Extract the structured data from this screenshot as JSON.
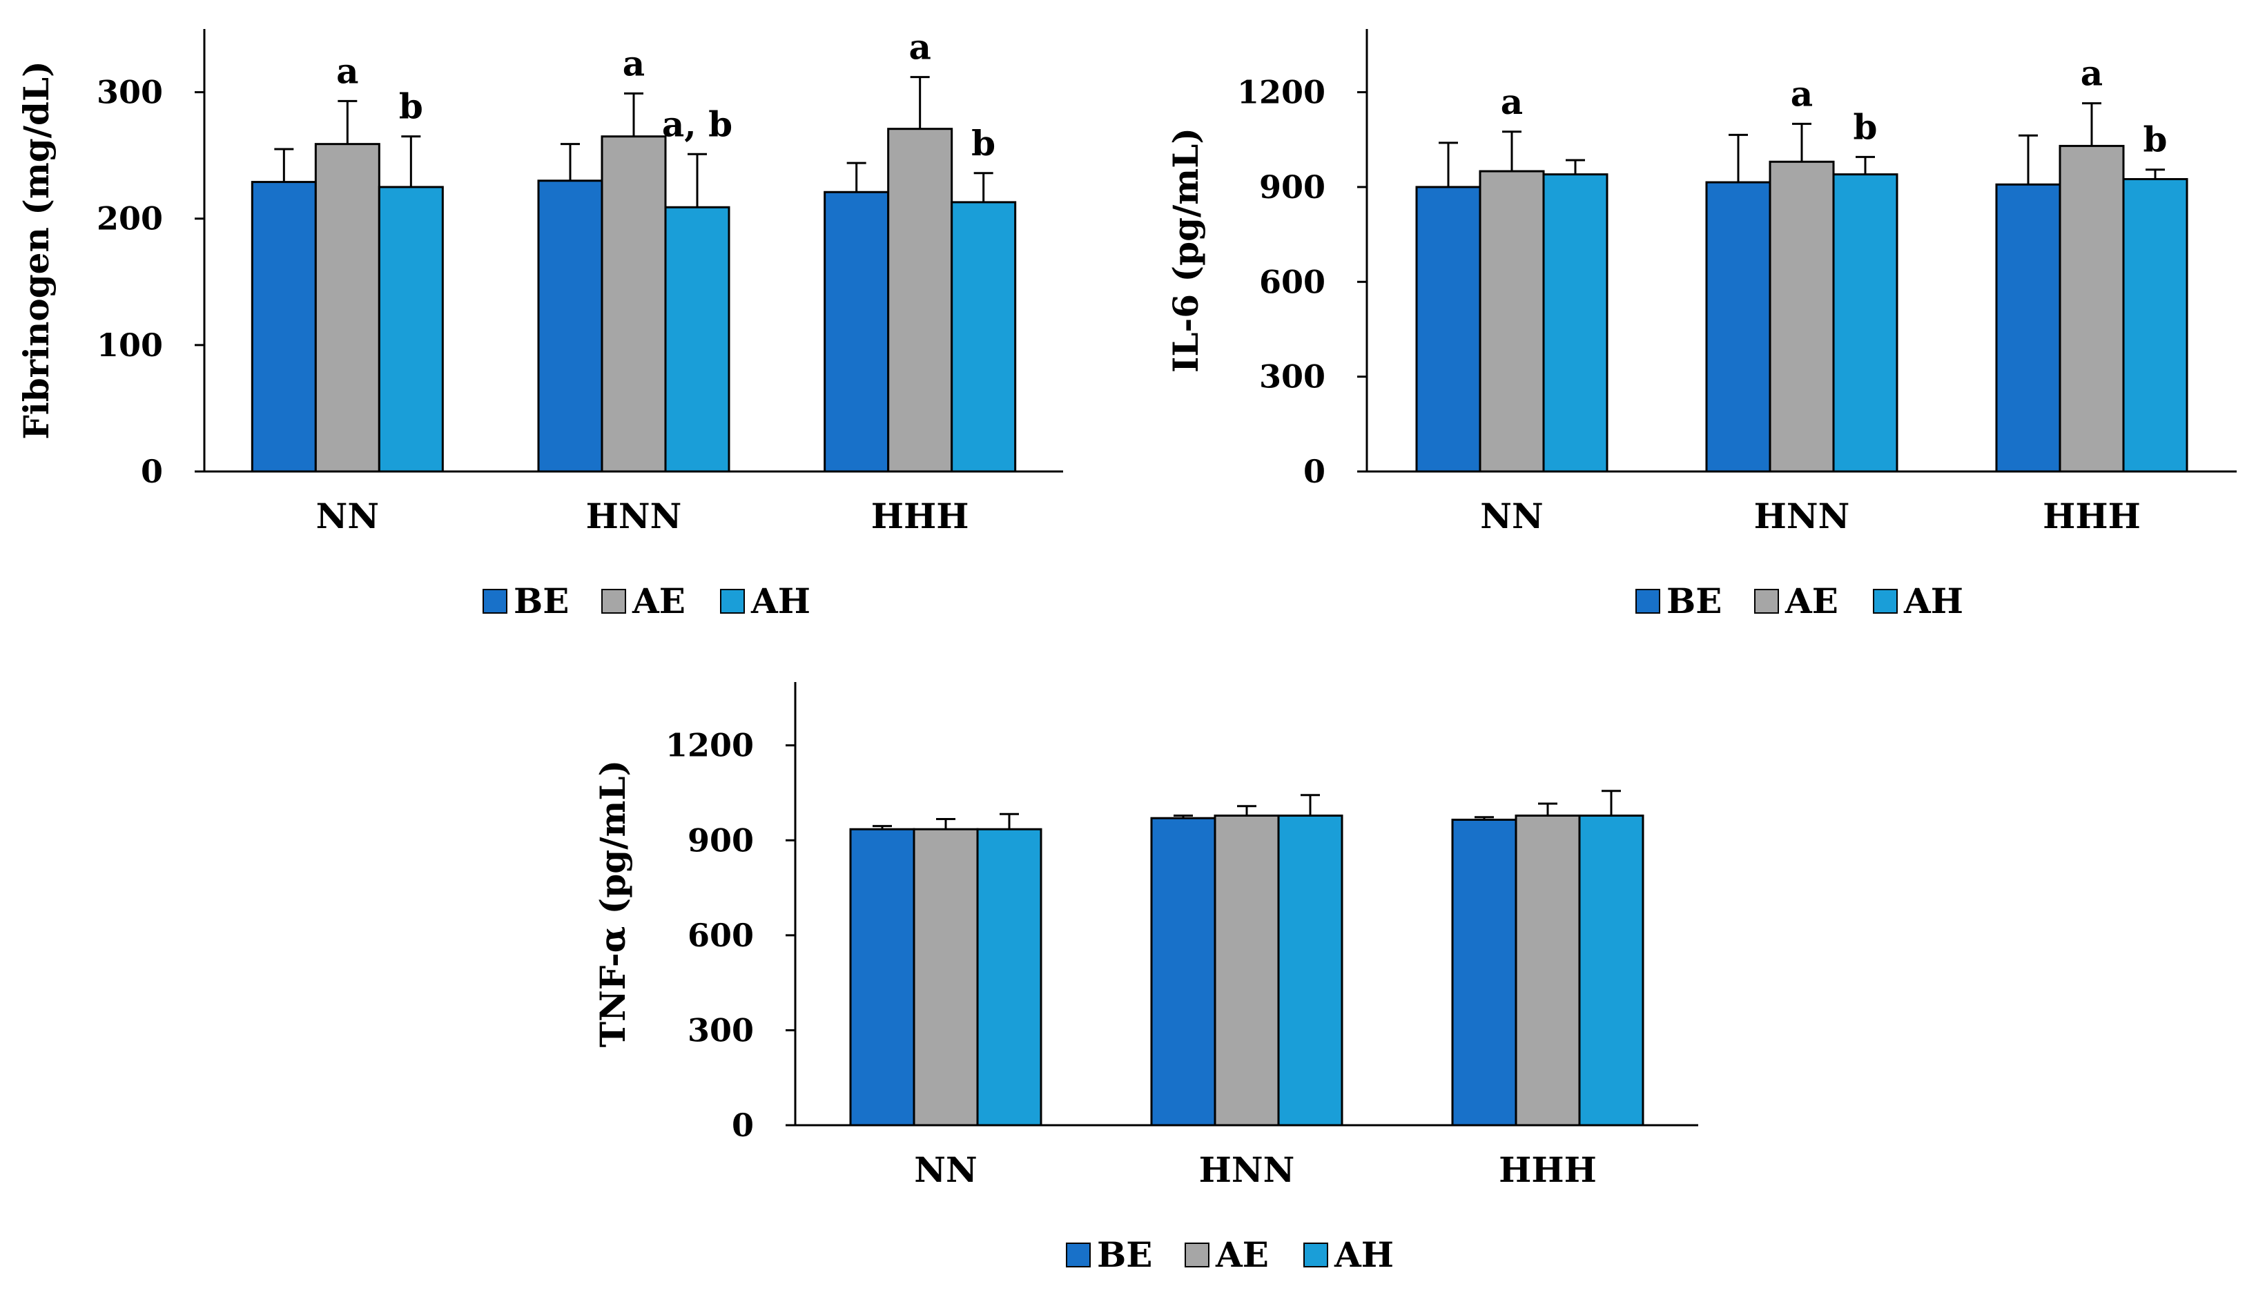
{
  "figure": {
    "colors": {
      "BE": "#1871C9",
      "AE": "#A6A6A6",
      "AH": "#1A9ED8",
      "outline": "#000000",
      "axis": "#000000"
    }
  },
  "chart_data": [
    {
      "type": "bar",
      "title": "",
      "xlabel": "",
      "ylabel": "Fibrinogen (mg/dL)",
      "ylim": [
        0,
        350
      ],
      "yticks": [
        0,
        100,
        200,
        300
      ],
      "grid": false,
      "legend_position": "bottom",
      "categories": [
        "NN",
        "HNN",
        "HHH"
      ],
      "series": [
        {
          "name": "BE",
          "values": [
            229,
            230,
            221
          ],
          "errors": [
            26,
            29,
            23
          ],
          "labels": [
            "",
            "",
            ""
          ]
        },
        {
          "name": "AE",
          "values": [
            259,
            265,
            271
          ],
          "errors": [
            34,
            34,
            41
          ],
          "labels": [
            "a",
            "a",
            "a"
          ]
        },
        {
          "name": "AH",
          "values": [
            225,
            209,
            213
          ],
          "errors": [
            40,
            42,
            23
          ],
          "labels": [
            "b",
            "a, b",
            "b"
          ]
        }
      ]
    },
    {
      "type": "bar",
      "title": "",
      "xlabel": "",
      "ylabel": "IL-6 (pg/mL)",
      "ylim": [
        0,
        1400
      ],
      "yticks": [
        0,
        300,
        600,
        900,
        1200
      ],
      "grid": false,
      "legend_position": "bottom",
      "categories": [
        "NN",
        "HNN",
        "HHH"
      ],
      "series": [
        {
          "name": "BE",
          "values": [
            900,
            915,
            908
          ],
          "errors": [
            140,
            150,
            155
          ],
          "labels": [
            "",
            "",
            ""
          ]
        },
        {
          "name": "AE",
          "values": [
            950,
            980,
            1030
          ],
          "errors": [
            125,
            120,
            135
          ],
          "labels": [
            "a",
            "a",
            "a"
          ]
        },
        {
          "name": "AH",
          "values": [
            940,
            940,
            925
          ],
          "errors": [
            45,
            55,
            30
          ],
          "labels": [
            "",
            "b",
            "b"
          ]
        }
      ]
    },
    {
      "type": "bar",
      "title": "",
      "xlabel": "",
      "ylabel": "TNF-α (pg/mL)",
      "ylim": [
        0,
        1400
      ],
      "yticks": [
        0,
        300,
        600,
        900,
        1200
      ],
      "grid": false,
      "legend_position": "bottom",
      "categories": [
        "NN",
        "HNN",
        "HHH"
      ],
      "series": [
        {
          "name": "BE",
          "values": [
            935,
            970,
            965
          ],
          "errors": [
            10,
            8,
            8
          ],
          "labels": [
            "",
            "",
            ""
          ]
        },
        {
          "name": "AE",
          "values": [
            935,
            978,
            978
          ],
          "errors": [
            32,
            30,
            38
          ],
          "labels": [
            "",
            "",
            ""
          ]
        },
        {
          "name": "AH",
          "values": [
            935,
            978,
            978
          ],
          "errors": [
            48,
            65,
            78
          ],
          "labels": [
            "",
            "",
            ""
          ]
        }
      ]
    }
  ]
}
